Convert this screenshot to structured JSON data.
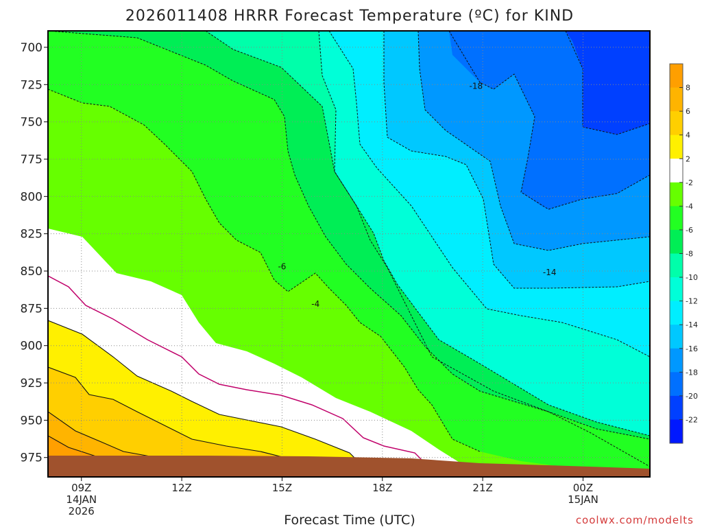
{
  "chart_data": {
    "type": "heatmap",
    "title": "2026011408 HRRR Forecast Temperature (ºC) for KIND",
    "xlabel": "Forecast Time (UTC)",
    "ylabel": "",
    "x_ticks": [
      {
        "label": "09Z",
        "sub1": "14JAN",
        "sub2": "2026",
        "hour": 9
      },
      {
        "label": "12Z",
        "sub1": "",
        "sub2": "",
        "hour": 12
      },
      {
        "label": "15Z",
        "sub1": "",
        "sub2": "",
        "hour": 15
      },
      {
        "label": "18Z",
        "sub1": "",
        "sub2": "",
        "hour": 18
      },
      {
        "label": "21Z",
        "sub1": "",
        "sub2": "",
        "hour": 21
      },
      {
        "label": "00Z",
        "sub1": "15JAN",
        "sub2": "",
        "hour": 24
      }
    ],
    "x_range_hours": [
      8,
      26
    ],
    "y_ticks": [
      700,
      725,
      750,
      775,
      800,
      825,
      850,
      875,
      900,
      925,
      950,
      975
    ],
    "y_range_hPa": [
      689,
      988
    ],
    "grid": true,
    "legend": "right colorbar",
    "colorbar": {
      "labels": [
        "8",
        "6",
        "4",
        "2",
        "-2",
        "-4",
        "-6",
        "-8",
        "-10",
        "-12",
        "-14",
        "-16",
        "-18",
        "-20",
        "-22"
      ],
      "colors": [
        "#ff9f00",
        "#ffb400",
        "#ffcf00",
        "#fff000",
        "#ffffff",
        "#66ff00",
        "#22ff22",
        "#00ee55",
        "#00ffaa",
        "#00ffd8",
        "#00eeff",
        "#00c8ff",
        "#0098ff",
        "#0070ff",
        "#0040ff",
        "#0018ff"
      ]
    },
    "contour_labels": [
      {
        "text": "-18",
        "hour": 20.8,
        "p": 726
      },
      {
        "text": "-14",
        "hour": 23.0,
        "p": 851
      },
      {
        "text": "-6",
        "hour": 15.0,
        "p": 847
      },
      {
        "text": "-4",
        "hour": 16.0,
        "p": 872
      }
    ],
    "terrain_color": "#a0522d"
  },
  "credit": "coolwx.com/modelts"
}
